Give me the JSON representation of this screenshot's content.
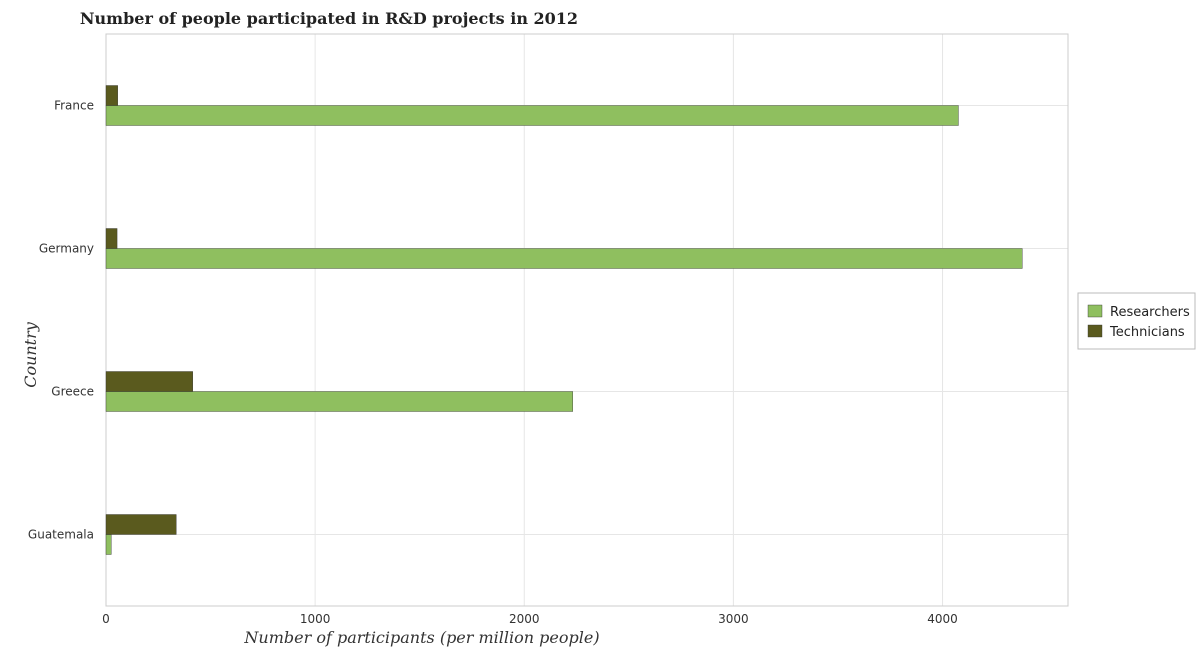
{
  "chart_data": {
    "type": "bar",
    "orientation": "horizontal",
    "title": "Number of people participated in R&D projects in 2012",
    "xlabel": "Number of participants (per million people)",
    "ylabel": "Country",
    "categories": [
      "France",
      "Germany",
      "Greece",
      "Guatemala"
    ],
    "series": [
      {
        "name": "Researchers",
        "values": [
          4076,
          4381,
          2232,
          25
        ],
        "color": "#8fbf5f"
      },
      {
        "name": "Technicians",
        "values": [
          56,
          53,
          415,
          336
        ],
        "color": "#5a5a1e"
      }
    ],
    "xlim": [
      0,
      4600
    ],
    "xticks": [
      0,
      1000,
      2000,
      3000,
      4000
    ],
    "xtick_labels": [
      "0",
      "1000",
      "2000",
      "3000",
      "4000"
    ],
    "grid": true,
    "legend_position": "right"
  }
}
